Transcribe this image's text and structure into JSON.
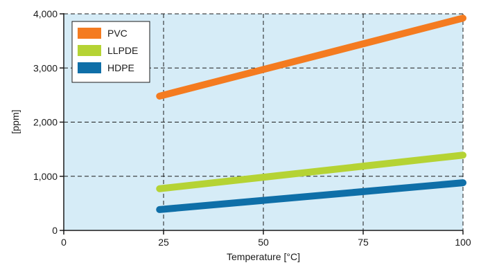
{
  "chart_data": {
    "type": "line",
    "xlabel": "Temperature [°C]",
    "ylabel": "[ppm]",
    "xlim": [
      0,
      100
    ],
    "ylim": [
      0,
      4000
    ],
    "xticks": [
      0,
      25,
      50,
      75,
      100
    ],
    "xtick_labels": [
      "0",
      "25",
      "50",
      "75",
      "100"
    ],
    "yticks": [
      0,
      1000,
      2000,
      3000,
      4000
    ],
    "ytick_labels": [
      "0",
      "1,000",
      "2,000",
      "3,000",
      "4,000"
    ],
    "grid": true,
    "grid_style": "dashed",
    "plot_background": "#d6ecf7",
    "legend_position": "top-left",
    "series": [
      {
        "name": "PVC",
        "color": "#f47b20",
        "x": [
          24,
          100
        ],
        "y": [
          2480,
          3920
        ]
      },
      {
        "name": "LLPDE",
        "color": "#b5d334",
        "x": [
          24,
          100
        ],
        "y": [
          770,
          1390
        ]
      },
      {
        "name": "HDPE",
        "color": "#0f6fa8",
        "x": [
          24,
          100
        ],
        "y": [
          385,
          880
        ]
      }
    ]
  }
}
